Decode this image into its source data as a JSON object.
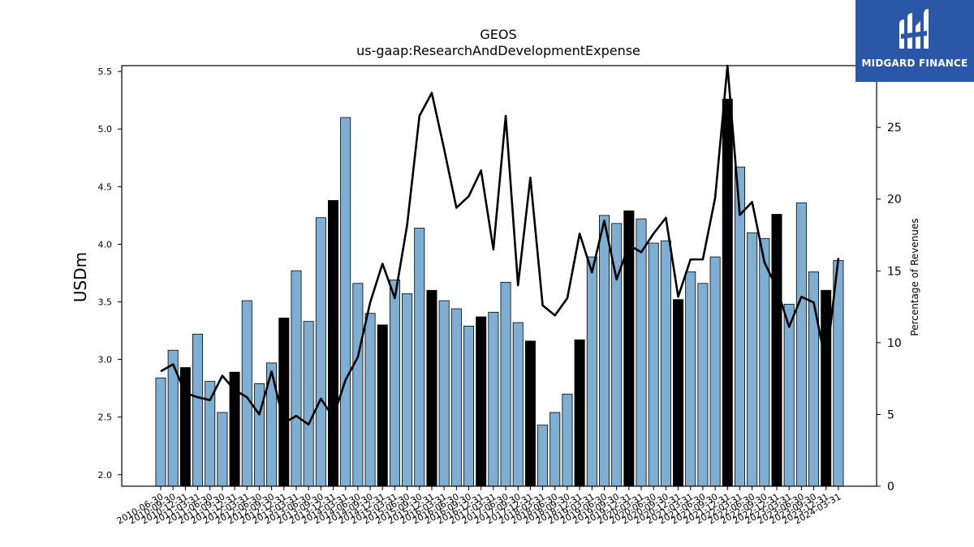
{
  "chart_data": {
    "type": "bar",
    "title": "GEOS",
    "subtitle": "us-gaap:ResearchAndDevelopmentExpense",
    "ylabel": "USDm",
    "y2label": "Percentage of Revenues",
    "ylim": [
      1.9,
      5.55
    ],
    "y2lim": [
      0,
      29.3
    ],
    "yticks": [
      "2.0",
      "2.5",
      "3.0",
      "3.5",
      "4.0",
      "4.5",
      "5.0",
      "5.5"
    ],
    "y2ticks": [
      "0",
      "5",
      "10",
      "15",
      "20",
      "25"
    ],
    "categories": [
      "2010-06-30",
      "2010-09-30",
      "2010-12-31",
      "2011-03-31",
      "2011-06-30",
      "2011-09-30",
      "2011-12-31",
      "2012-03-31",
      "2012-06-30",
      "2012-09-30",
      "2012-12-31",
      "2013-03-31",
      "2013-06-30",
      "2013-09-30",
      "2013-12-31",
      "2014-03-31",
      "2014-06-30",
      "2014-09-30",
      "2014-12-31",
      "2015-03-31",
      "2015-06-30",
      "2015-09-30",
      "2015-12-31",
      "2016-03-31",
      "2016-06-30",
      "2016-09-30",
      "2016-12-31",
      "2017-03-31",
      "2017-06-30",
      "2017-09-30",
      "2017-12-31",
      "2018-03-31",
      "2018-06-30",
      "2018-09-30",
      "2018-12-31",
      "2019-03-31",
      "2019-06-30",
      "2019-09-30",
      "2019-12-31",
      "2020-03-31",
      "2020-06-30",
      "2020-09-30",
      "2020-12-31",
      "2021-03-31",
      "2021-06-30",
      "2021-09-30",
      "2021-12-31",
      "2022-03-31",
      "2022-06-30",
      "2022-09-30",
      "2022-12-31",
      "2023-03-31",
      "2023-06-30",
      "2023-09-30",
      "2023-12-31",
      "2024-03-31"
    ],
    "xtick_labels": [
      "2010-06-30",
      "2010-09-30",
      "2010-12-31",
      "2011-03-31",
      "2011-06-30",
      "2011-09-30",
      "2011-12-31",
      "2012-03-31",
      "2012-06-30",
      "2012-09-30",
      "2012-12-31",
      "2013-03-31",
      "2013-06-30",
      "2013-09-30",
      "2013-12-31",
      "2014-03-31",
      "2014-06-30",
      "2014-09-30",
      "2014-12-31",
      "2015-03-31",
      "2015-06-30",
      "2015-09-30",
      "2015-12-31",
      "2016-03-31",
      "2016-06-30",
      "2016-09-30",
      "2016-12-31",
      "2017-03-31",
      "2017-06-30",
      "2017-09-30",
      "2017-12-31",
      "2018-03-31",
      "2018-06-30",
      "2018-09-30",
      "2018-12-31",
      "2019-03-31",
      "2019-06-30",
      "2019-09-30",
      "2019-12-31",
      "2020-03-31",
      "2020-06-30",
      "2020-09-30",
      "2020-12-31",
      "2021-03-31",
      "2021-06-30",
      "2021-09-30",
      "2021-12-31",
      "2022-03-31",
      "2022-06-30",
      "2022-09-30",
      "2022-12-31",
      "2023-03-31",
      "2023-06-30",
      "2023-09-30",
      "2023-12-31",
      "2024-03-31"
    ],
    "bar_colors": {
      "quarter": "#7eafd3",
      "year_end": "#000000"
    },
    "series": [
      {
        "kind": "bar",
        "axis": "left",
        "values": [
          2.84,
          3.08,
          2.93,
          3.22,
          2.81,
          2.54,
          2.89,
          3.51,
          2.79,
          2.97,
          3.36,
          3.77,
          3.33,
          4.23,
          4.38,
          5.1,
          3.66,
          3.4,
          3.3,
          3.69,
          3.57,
          4.14,
          3.6,
          3.51,
          3.44,
          3.29,
          3.37,
          3.41,
          3.67,
          3.32,
          3.16,
          2.43,
          2.54,
          2.7,
          3.17,
          3.89,
          4.25,
          4.18,
          4.29,
          4.22,
          4.01,
          4.03,
          3.52,
          3.76,
          3.66,
          3.89,
          5.26,
          4.67,
          4.1,
          4.05,
          4.26,
          3.48,
          4.36,
          3.76,
          3.6,
          3.86
        ],
        "year_end": [
          false,
          false,
          true,
          false,
          false,
          false,
          true,
          false,
          false,
          false,
          true,
          false,
          false,
          false,
          true,
          false,
          false,
          false,
          true,
          false,
          false,
          false,
          true,
          false,
          false,
          false,
          true,
          false,
          false,
          false,
          true,
          false,
          false,
          false,
          true,
          false,
          false,
          false,
          true,
          false,
          false,
          false,
          true,
          false,
          false,
          false,
          true,
          false,
          false,
          false,
          true,
          false,
          false,
          false,
          true,
          false
        ]
      },
      {
        "kind": "line",
        "axis": "right",
        "color": "#000000",
        "values": [
          8.0,
          8.5,
          6.5,
          6.2,
          6.0,
          7.7,
          6.7,
          6.2,
          5.0,
          8.0,
          4.4,
          4.9,
          4.3,
          6.1,
          4.8,
          7.4,
          9.0,
          12.8,
          15.5,
          13.1,
          18.2,
          25.8,
          27.4,
          23.5,
          19.4,
          20.2,
          22.0,
          16.5,
          25.8,
          14.0,
          21.5,
          12.6,
          11.9,
          13.1,
          17.6,
          14.9,
          18.5,
          14.4,
          16.8,
          16.3,
          17.6,
          18.7,
          13.2,
          15.8,
          15.8,
          20.1,
          29.3,
          18.9,
          19.8,
          15.6,
          13.8,
          11.1,
          13.2,
          12.8,
          8.5,
          15.9
        ]
      }
    ]
  },
  "logo": {
    "text": "MIDGARD FINANCE",
    "icon": "midgard-logo-icon"
  }
}
